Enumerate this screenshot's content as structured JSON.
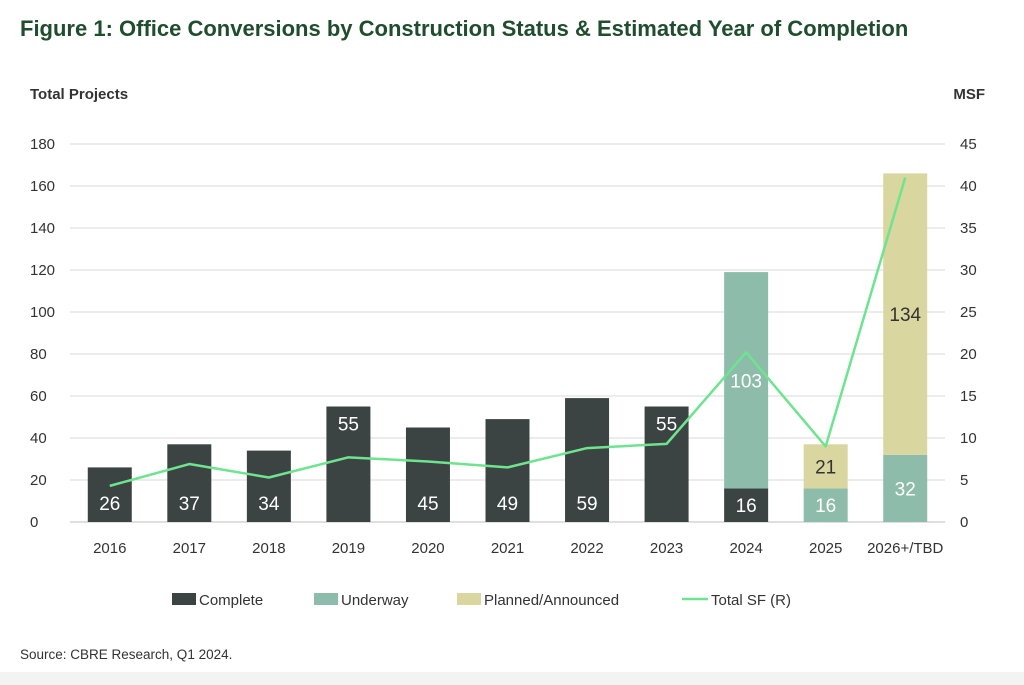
{
  "figure": {
    "title": "Figure 1: Office Conversions by Construction Status & Estimated Year of Completion",
    "source": "Source: CBRE Research, Q1 2024."
  },
  "colors": {
    "complete": "#3c4443",
    "underway": "#8dbcaa",
    "planned": "#d9d6a0",
    "total_sf": "#6ee48f",
    "grid": "#d9d9d9"
  },
  "chart_data": {
    "type": "bar",
    "stacked": true,
    "categories": [
      "2016",
      "2017",
      "2018",
      "2019",
      "2020",
      "2021",
      "2022",
      "2023",
      "2024",
      "2025",
      "2026+/TBD"
    ],
    "series": [
      {
        "name": "Complete",
        "values": [
          26,
          37,
          34,
          55,
          45,
          49,
          59,
          55,
          16,
          0,
          0
        ]
      },
      {
        "name": "Underway",
        "values": [
          0,
          0,
          0,
          0,
          0,
          0,
          0,
          0,
          103,
          16,
          32
        ]
      },
      {
        "name": "Planned/Announced",
        "values": [
          0,
          0,
          0,
          0,
          0,
          0,
          0,
          0,
          0,
          21,
          134
        ]
      }
    ],
    "line_series": {
      "name": "Total SF (R)",
      "axis": "right",
      "values": [
        4.3,
        6.9,
        5.3,
        7.7,
        7.2,
        6.5,
        8.8,
        9.3,
        20.2,
        9.0,
        41.0
      ]
    },
    "ylabel": "Total Projects",
    "ylabel_right": "MSF",
    "ylim": [
      0,
      180
    ],
    "ylim_right": [
      0,
      45
    ],
    "yticks": [
      "0",
      "20",
      "40",
      "60",
      "80",
      "100",
      "120",
      "140",
      "160",
      "180"
    ],
    "yticks_right": [
      "0",
      "5",
      "10",
      "15",
      "20",
      "25",
      "30",
      "35",
      "40",
      "45"
    ],
    "grid": true,
    "legend_position": "bottom"
  }
}
